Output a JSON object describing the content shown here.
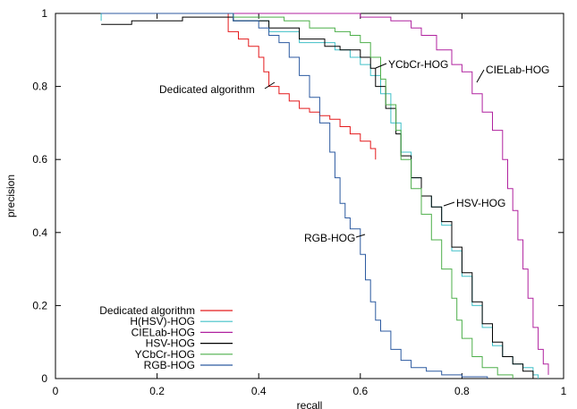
{
  "chart_data": {
    "type": "line",
    "xlabel": "recall",
    "ylabel": "precision",
    "xlim": [
      0,
      1
    ],
    "ylim": [
      0,
      1
    ],
    "xticks": [
      "0",
      "0.2",
      "0.4",
      "0.6",
      "0.8",
      "1"
    ],
    "yticks": [
      "0",
      "0.2",
      "0.4",
      "0.6",
      "0.8",
      "1"
    ],
    "grid": false,
    "legend_position": "bottom-left",
    "series": [
      {
        "name": "Dedicated algorithm",
        "color": "#e41a1c",
        "points": [
          [
            0.33,
            1.0
          ],
          [
            0.34,
            0.95
          ],
          [
            0.36,
            0.93
          ],
          [
            0.38,
            0.91
          ],
          [
            0.4,
            0.88
          ],
          [
            0.41,
            0.84
          ],
          [
            0.42,
            0.8
          ],
          [
            0.44,
            0.78
          ],
          [
            0.46,
            0.76
          ],
          [
            0.48,
            0.74
          ],
          [
            0.5,
            0.73
          ],
          [
            0.52,
            0.72
          ],
          [
            0.54,
            0.71
          ],
          [
            0.56,
            0.69
          ],
          [
            0.58,
            0.67
          ],
          [
            0.6,
            0.65
          ],
          [
            0.62,
            0.63
          ],
          [
            0.63,
            0.6
          ]
        ]
      },
      {
        "name": "H(HSV)-HOG",
        "color": "#40c0c8",
        "points": [
          [
            0.09,
            0.98
          ],
          [
            0.09,
            1.0
          ],
          [
            0.2,
            1.0
          ],
          [
            0.35,
            0.98
          ],
          [
            0.42,
            0.95
          ],
          [
            0.48,
            0.92
          ],
          [
            0.55,
            0.9
          ],
          [
            0.58,
            0.88
          ],
          [
            0.6,
            0.86
          ],
          [
            0.62,
            0.83
          ],
          [
            0.64,
            0.78
          ],
          [
            0.66,
            0.7
          ],
          [
            0.68,
            0.62
          ],
          [
            0.7,
            0.55
          ],
          [
            0.72,
            0.5
          ],
          [
            0.74,
            0.47
          ],
          [
            0.76,
            0.42
          ],
          [
            0.78,
            0.35
          ],
          [
            0.8,
            0.28
          ],
          [
            0.82,
            0.2
          ],
          [
            0.84,
            0.14
          ],
          [
            0.86,
            0.09
          ],
          [
            0.88,
            0.06
          ],
          [
            0.9,
            0.04
          ],
          [
            0.92,
            0.03
          ],
          [
            0.94,
            0.01
          ],
          [
            0.95,
            0.0
          ]
        ]
      },
      {
        "name": "CIELab-HOG",
        "color": "#b0229f",
        "points": [
          [
            0.2,
            1.0
          ],
          [
            0.4,
            1.0
          ],
          [
            0.6,
            0.99
          ],
          [
            0.66,
            0.98
          ],
          [
            0.7,
            0.96
          ],
          [
            0.72,
            0.94
          ],
          [
            0.75,
            0.9
          ],
          [
            0.78,
            0.86
          ],
          [
            0.8,
            0.84
          ],
          [
            0.82,
            0.78
          ],
          [
            0.84,
            0.73
          ],
          [
            0.86,
            0.68
          ],
          [
            0.88,
            0.6
          ],
          [
            0.89,
            0.52
          ],
          [
            0.9,
            0.46
          ],
          [
            0.91,
            0.38
          ],
          [
            0.92,
            0.3
          ],
          [
            0.93,
            0.22
          ],
          [
            0.94,
            0.14
          ],
          [
            0.95,
            0.08
          ],
          [
            0.96,
            0.04
          ],
          [
            0.97,
            0.01
          ]
        ]
      },
      {
        "name": "HSV-HOG",
        "color": "#000000",
        "points": [
          [
            0.09,
            0.97
          ],
          [
            0.15,
            0.98
          ],
          [
            0.25,
            0.99
          ],
          [
            0.35,
            0.98
          ],
          [
            0.42,
            0.96
          ],
          [
            0.48,
            0.93
          ],
          [
            0.53,
            0.91
          ],
          [
            0.56,
            0.9
          ],
          [
            0.6,
            0.88
          ],
          [
            0.62,
            0.85
          ],
          [
            0.63,
            0.8
          ],
          [
            0.65,
            0.74
          ],
          [
            0.67,
            0.67
          ],
          [
            0.68,
            0.61
          ],
          [
            0.7,
            0.55
          ],
          [
            0.72,
            0.5
          ],
          [
            0.74,
            0.47
          ],
          [
            0.76,
            0.43
          ],
          [
            0.78,
            0.36
          ],
          [
            0.8,
            0.29
          ],
          [
            0.82,
            0.21
          ],
          [
            0.84,
            0.15
          ],
          [
            0.86,
            0.1
          ],
          [
            0.88,
            0.06
          ],
          [
            0.9,
            0.04
          ],
          [
            0.92,
            0.02
          ],
          [
            0.94,
            0.0
          ]
        ]
      },
      {
        "name": "YCbCr-HOG",
        "color": "#4daf4a",
        "points": [
          [
            0.2,
            1.0
          ],
          [
            0.35,
            0.99
          ],
          [
            0.45,
            0.98
          ],
          [
            0.5,
            0.96
          ],
          [
            0.55,
            0.95
          ],
          [
            0.58,
            0.94
          ],
          [
            0.6,
            0.92
          ],
          [
            0.62,
            0.88
          ],
          [
            0.64,
            0.82
          ],
          [
            0.65,
            0.75
          ],
          [
            0.67,
            0.68
          ],
          [
            0.68,
            0.6
          ],
          [
            0.7,
            0.52
          ],
          [
            0.72,
            0.45
          ],
          [
            0.74,
            0.38
          ],
          [
            0.76,
            0.3
          ],
          [
            0.78,
            0.22
          ],
          [
            0.79,
            0.16
          ],
          [
            0.8,
            0.11
          ],
          [
            0.82,
            0.06
          ],
          [
            0.84,
            0.03
          ],
          [
            0.87,
            0.01
          ],
          [
            0.9,
            0.0
          ]
        ]
      },
      {
        "name": "RGB-HOG",
        "color": "#2c5aa0",
        "points": [
          [
            0.09,
            1.0
          ],
          [
            0.25,
            1.0
          ],
          [
            0.35,
            0.98
          ],
          [
            0.4,
            0.96
          ],
          [
            0.42,
            0.94
          ],
          [
            0.44,
            0.92
          ],
          [
            0.46,
            0.88
          ],
          [
            0.48,
            0.83
          ],
          [
            0.5,
            0.77
          ],
          [
            0.52,
            0.7
          ],
          [
            0.54,
            0.62
          ],
          [
            0.55,
            0.55
          ],
          [
            0.56,
            0.48
          ],
          [
            0.57,
            0.44
          ],
          [
            0.58,
            0.41
          ],
          [
            0.6,
            0.34
          ],
          [
            0.61,
            0.27
          ],
          [
            0.62,
            0.21
          ],
          [
            0.63,
            0.16
          ],
          [
            0.64,
            0.13
          ],
          [
            0.66,
            0.08
          ],
          [
            0.68,
            0.05
          ],
          [
            0.7,
            0.03
          ],
          [
            0.73,
            0.02
          ],
          [
            0.76,
            0.01
          ],
          [
            0.8,
            0.005
          ],
          [
            0.85,
            0.0
          ]
        ]
      }
    ],
    "annotations": [
      {
        "text": "Dedicated algorithm",
        "x": 0.41,
        "y": 0.82
      },
      {
        "text": "YCbCr-HOG",
        "x": 0.62,
        "y": 0.86
      },
      {
        "text": "CIELab-HOG",
        "x": 0.8,
        "y": 0.84
      },
      {
        "text": "HSV-HOG",
        "x": 0.74,
        "y": 0.48
      },
      {
        "text": "RGB-HOG",
        "x": 0.58,
        "y": 0.4
      }
    ]
  }
}
